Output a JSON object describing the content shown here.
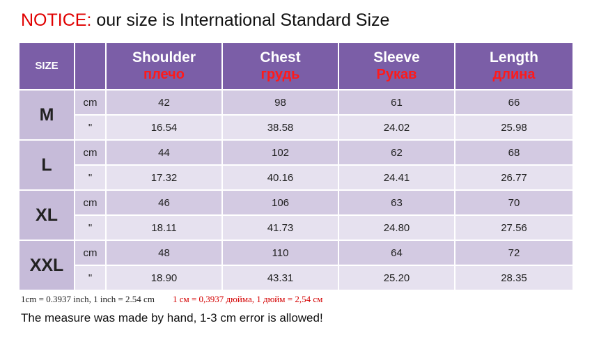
{
  "title": {
    "notice": "NOTICE:",
    "text": " our size is International Standard Size"
  },
  "colors": {
    "header_bg": "#7b5ea7",
    "header_ru_text": "#ff1a1a",
    "notice": "#e00000",
    "row_cm": "#d3cae2",
    "row_inch": "#e6e1ef"
  },
  "table": {
    "size_header": "SIZE",
    "columns": [
      {
        "en": "Shoulder",
        "ru": "плечо"
      },
      {
        "en": "Chest",
        "ru": "грудь"
      },
      {
        "en": "Sleeve",
        "ru": "Рукав"
      },
      {
        "en": "Length",
        "ru": "длина"
      }
    ],
    "units": {
      "cm": "cm",
      "inch": "\""
    },
    "rows": [
      {
        "size": "M",
        "cm": [
          "42",
          "98",
          "61",
          "66"
        ],
        "inch": [
          "16.54",
          "38.58",
          "24.02",
          "25.98"
        ]
      },
      {
        "size": "L",
        "cm": [
          "44",
          "102",
          "62",
          "68"
        ],
        "inch": [
          "17.32",
          "40.16",
          "24.41",
          "26.77"
        ]
      },
      {
        "size": "XL",
        "cm": [
          "46",
          "106",
          "63",
          "70"
        ],
        "inch": [
          "18.11",
          "41.73",
          "24.80",
          "27.56"
        ]
      },
      {
        "size": "XXL",
        "cm": [
          "48",
          "110",
          "64",
          "72"
        ],
        "inch": [
          "18.90",
          "43.31",
          "25.20",
          "28.35"
        ]
      }
    ]
  },
  "conversion": {
    "en": "1cm = 0.3937 inch,  1 inch = 2.54 cm",
    "ru": "1 см = 0,3937 дюйма, 1 дюйм = 2,54 см"
  },
  "note": "The measure was made by hand, 1-3 cm error is allowed!"
}
